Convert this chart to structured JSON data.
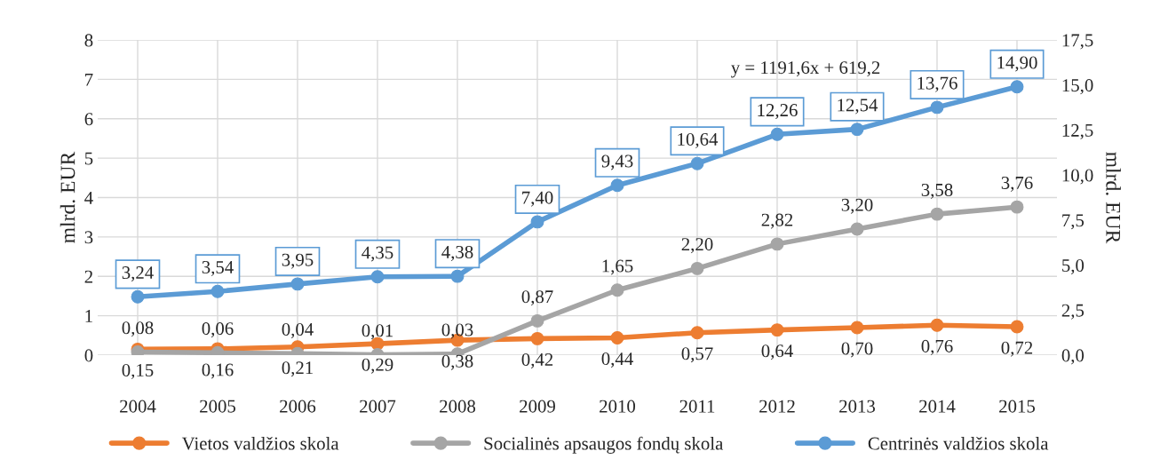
{
  "chart_data": {
    "type": "line",
    "categories": [
      "2004",
      "2005",
      "2006",
      "2007",
      "2008",
      "2009",
      "2010",
      "2011",
      "2012",
      "2013",
      "2014",
      "2015"
    ],
    "ylabel": "mlrd. EUR",
    "y2label": "mlrd. EUR",
    "ylim": [
      0,
      8
    ],
    "yticks": [
      0,
      1,
      2,
      3,
      4,
      5,
      6,
      7,
      8
    ],
    "y2lim": [
      0,
      17.5
    ],
    "y2ticks": [
      {
        "value": 0,
        "label": "0,0"
      },
      {
        "value": 2.5,
        "label": "2,5"
      },
      {
        "value": 5,
        "label": "5,0"
      },
      {
        "value": 7.5,
        "label": "7,5"
      },
      {
        "value": 10,
        "label": "10,0"
      },
      {
        "value": 12.5,
        "label": "12,5"
      },
      {
        "value": 15,
        "label": "15,0"
      },
      {
        "value": 17.5,
        "label": "17,5"
      }
    ],
    "series": [
      {
        "name": "Vietos valdžios skola",
        "color": "#ed7d31",
        "values": [
          0.15,
          0.16,
          0.21,
          0.29,
          0.38,
          0.42,
          0.44,
          0.57,
          0.64,
          0.7,
          0.76,
          0.72
        ],
        "value_labels": [
          "0,15",
          "0,16",
          "0,21",
          "0,29",
          "0,38",
          "0,42",
          "0,44",
          "0,57",
          "0,64",
          "0,70",
          "0,76",
          "0,72"
        ]
      },
      {
        "name": "Socialinės apsaugos fondų skola",
        "color": "#a5a5a5",
        "values": [
          0.08,
          0.06,
          0.04,
          0.01,
          0.03,
          0.87,
          1.65,
          2.2,
          2.82,
          3.2,
          3.58,
          3.76
        ],
        "value_labels": [
          "0,08",
          "0,06",
          "0,04",
          "0,01",
          "0,03",
          "0,87",
          "1,65",
          "2,20",
          "2,82",
          "3,20",
          "3,58",
          "3,76"
        ]
      },
      {
        "name": "Centrinės valdžios skola",
        "color": "#5b9bd5",
        "axis": "y2",
        "values": [
          3.24,
          3.54,
          3.95,
          4.35,
          4.38,
          7.4,
          9.43,
          10.64,
          12.26,
          12.54,
          13.76,
          14.9
        ],
        "value_labels": [
          "3,24",
          "3,54",
          "3,95",
          "4,35",
          "4,38",
          "7,40",
          "9,43",
          "10,64",
          "12,26",
          "12,54",
          "13,76",
          "14,90"
        ]
      }
    ],
    "annotations": [
      "y = 1191,6x + 619,2"
    ],
    "grid": true,
    "legend": "bottom",
    "marker": "circle",
    "line_style": "solid"
  }
}
